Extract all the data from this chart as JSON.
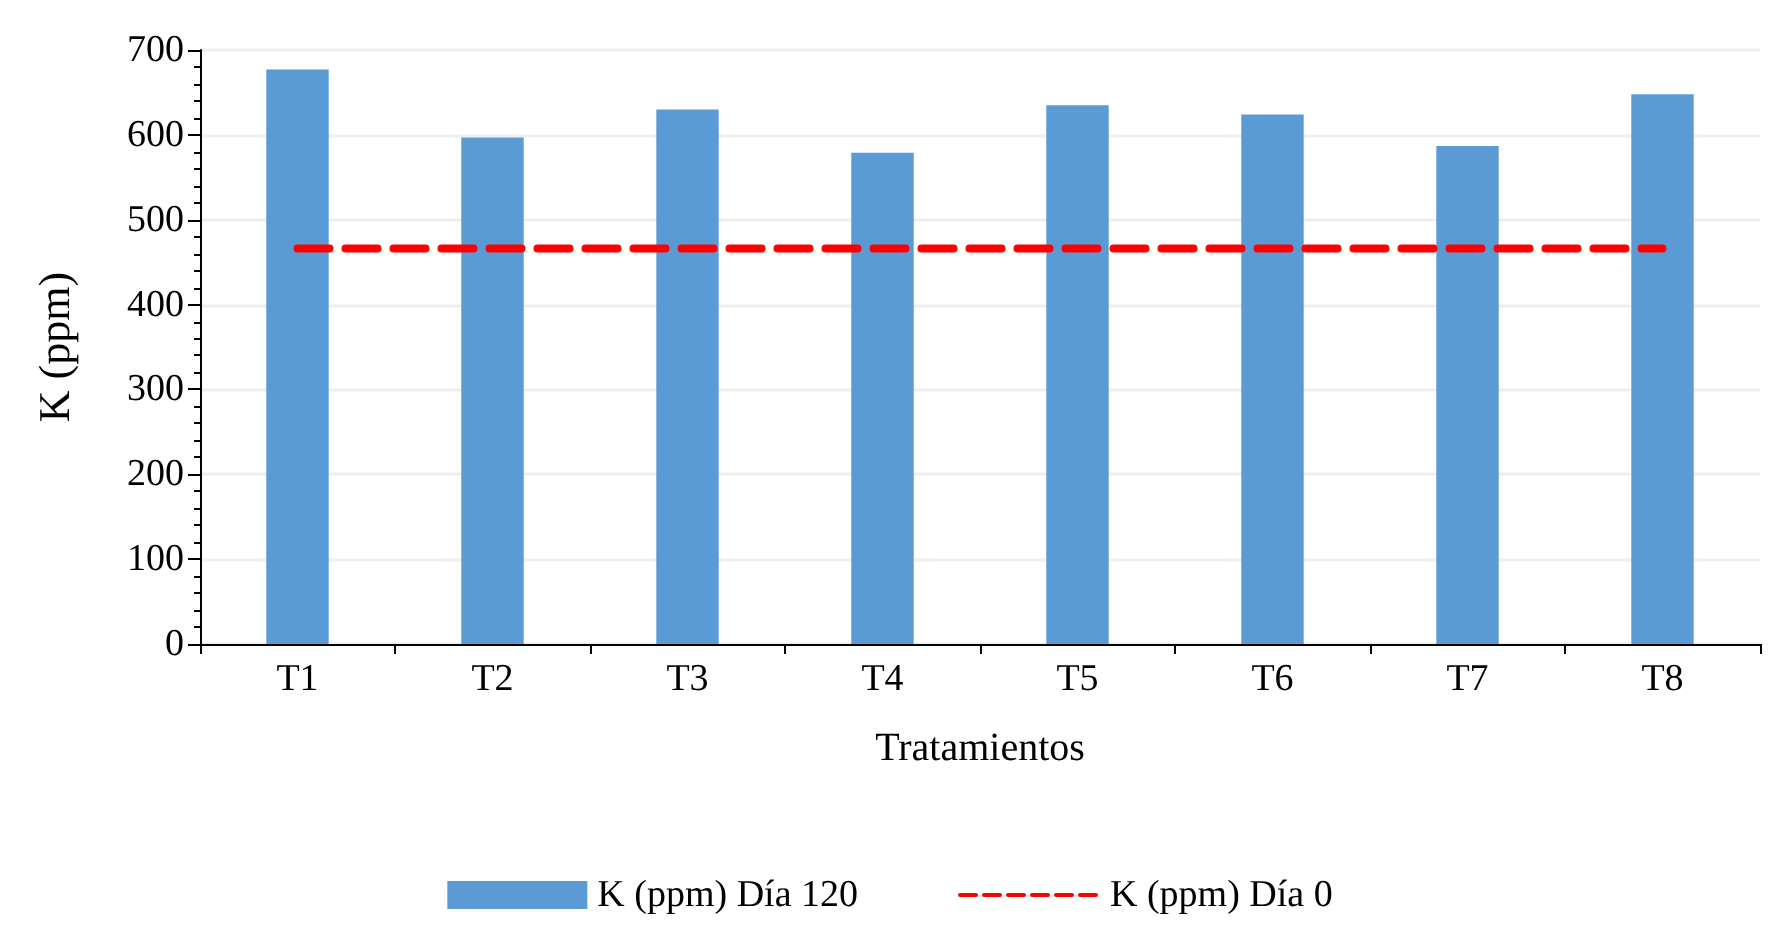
{
  "chart_data": {
    "type": "bar",
    "xlabel": "Tratamientos",
    "ylabel": "K (ppm)",
    "categories": [
      "T1",
      "T2",
      "T3",
      "T4",
      "T5",
      "T6",
      "T7",
      "T8"
    ],
    "series": [
      {
        "name": "K (ppm) Día 120",
        "color": "#5b9bd5",
        "values": [
          677,
          597,
          630,
          579,
          635,
          624,
          587,
          648
        ]
      },
      {
        "name": "K (ppm) Día 0",
        "type": "line",
        "color": "#ff0000",
        "line_style": "dashed",
        "marker": "none",
        "values": [
          466,
          466,
          466,
          466,
          466,
          466,
          466,
          466
        ]
      }
    ],
    "ylim": [
      0,
      700
    ],
    "yticks": [
      0,
      100,
      200,
      300,
      400,
      500,
      600,
      700
    ],
    "grid": "y",
    "legend": "bottom"
  }
}
